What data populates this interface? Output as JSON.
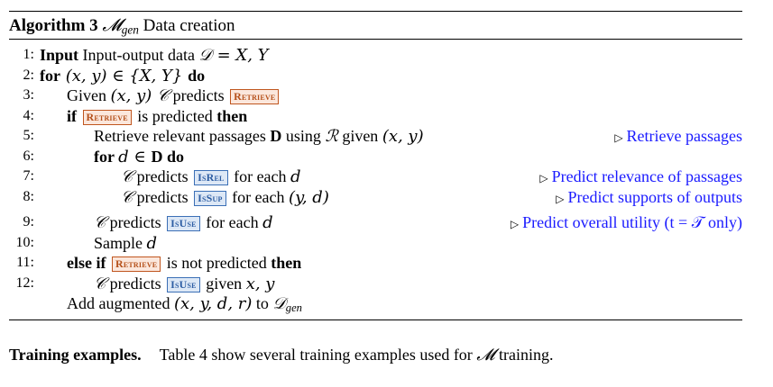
{
  "algorithm": {
    "label": "Algorithm 3",
    "model": "𝓜",
    "model_sub": "gen",
    "title_rest": "Data creation",
    "lines": [
      {
        "num": "1:",
        "indent": 0,
        "parts": [
          {
            "t": "kw",
            "v": "Input"
          },
          {
            "t": "txt",
            "v": " Input-output data "
          },
          {
            "t": "math",
            "v": "𝒟 = X, Y"
          }
        ]
      },
      {
        "num": "2:",
        "indent": 0,
        "parts": [
          {
            "t": "kw",
            "v": "for"
          },
          {
            "t": "math",
            "v": " (x, y) ∈ {X, Y} "
          },
          {
            "t": "kw",
            "v": "do"
          }
        ]
      },
      {
        "num": "3:",
        "indent": 1,
        "parts": [
          {
            "t": "txt",
            "v": "Given "
          },
          {
            "t": "math",
            "v": "(x, y) 𝒞"
          },
          {
            "t": "txt",
            "v": " predicts "
          },
          {
            "t": "tok-orange",
            "v": "Retrieve"
          }
        ]
      },
      {
        "num": "4:",
        "indent": 1,
        "parts": [
          {
            "t": "kw",
            "v": "if "
          },
          {
            "t": "tok-orange",
            "v": "Retrieve"
          },
          {
            "t": "txt",
            "v": " is predicted "
          },
          {
            "t": "kw",
            "v": "then"
          }
        ]
      },
      {
        "num": "5:",
        "indent": 2,
        "parts": [
          {
            "t": "txt",
            "v": "Retrieve relevant passages "
          },
          {
            "t": "kw",
            "v": "D"
          },
          {
            "t": "txt",
            "v": " using "
          },
          {
            "t": "math",
            "v": "ℛ"
          },
          {
            "t": "txt",
            "v": " given "
          },
          {
            "t": "math",
            "v": "(x, y)"
          }
        ],
        "comment": "Retrieve passages"
      },
      {
        "num": "6:",
        "indent": 2,
        "parts": [
          {
            "t": "kw",
            "v": "for "
          },
          {
            "t": "math",
            "v": "d ∈ "
          },
          {
            "t": "kw",
            "v": "D"
          },
          {
            "t": "kw",
            "v": " do"
          }
        ]
      },
      {
        "num": "7:",
        "indent": 3,
        "parts": [
          {
            "t": "math",
            "v": "𝒞"
          },
          {
            "t": "txt",
            "v": " predicts "
          },
          {
            "t": "tok-blue",
            "v": "IsRel"
          },
          {
            "t": "txt",
            "v": " for each "
          },
          {
            "t": "math",
            "v": "d"
          }
        ],
        "comment": "Predict relevance of passages"
      },
      {
        "num": "8:",
        "indent": 3,
        "parts": [
          {
            "t": "math",
            "v": "𝒞"
          },
          {
            "t": "txt",
            "v": " predicts "
          },
          {
            "t": "tok-blue",
            "v": "IsSup"
          },
          {
            "t": "txt",
            "v": " for each "
          },
          {
            "t": "math",
            "v": "(y, d)"
          }
        ],
        "comment": "Predict supports of outputs"
      },
      {
        "num": "9:",
        "indent": 2,
        "gap": true,
        "parts": [
          {
            "t": "math",
            "v": "𝒞"
          },
          {
            "t": "txt",
            "v": " predicts "
          },
          {
            "t": "tok-blue",
            "v": "IsUse"
          },
          {
            "t": "txt",
            "v": " for each "
          },
          {
            "t": "math",
            "v": "d"
          }
        ],
        "comment": "Predict overall utility (t = 𝒯 only)"
      },
      {
        "num": "10:",
        "indent": 2,
        "parts": [
          {
            "t": "txt",
            "v": "Sample "
          },
          {
            "t": "math",
            "v": "d"
          }
        ]
      },
      {
        "num": "11:",
        "indent": 1,
        "parts": [
          {
            "t": "kw",
            "v": "else if "
          },
          {
            "t": "tok-orange",
            "v": "Retrieve"
          },
          {
            "t": "txt",
            "v": " is not predicted "
          },
          {
            "t": "kw",
            "v": "then"
          }
        ]
      },
      {
        "num": "12:",
        "indent": 2,
        "parts": [
          {
            "t": "math",
            "v": "𝒞"
          },
          {
            "t": "txt",
            "v": " predicts "
          },
          {
            "t": "tok-blue",
            "v": "IsUse"
          },
          {
            "t": "txt",
            "v": " given "
          },
          {
            "t": "math",
            "v": "x, y"
          }
        ]
      },
      {
        "num": "",
        "indent": 1,
        "parts": [
          {
            "t": "txt",
            "v": "Add augmented "
          },
          {
            "t": "math",
            "v": "(x, y, d, r)"
          },
          {
            "t": "txt",
            "v": " to "
          },
          {
            "t": "math",
            "v": "𝒟"
          },
          {
            "t": "sub",
            "v": "gen"
          }
        ]
      }
    ]
  },
  "paragraph": {
    "heading": "Training examples.",
    "text_before": "Table 4 show several training examples used for ",
    "model": "𝓜",
    "text_after": " training."
  }
}
